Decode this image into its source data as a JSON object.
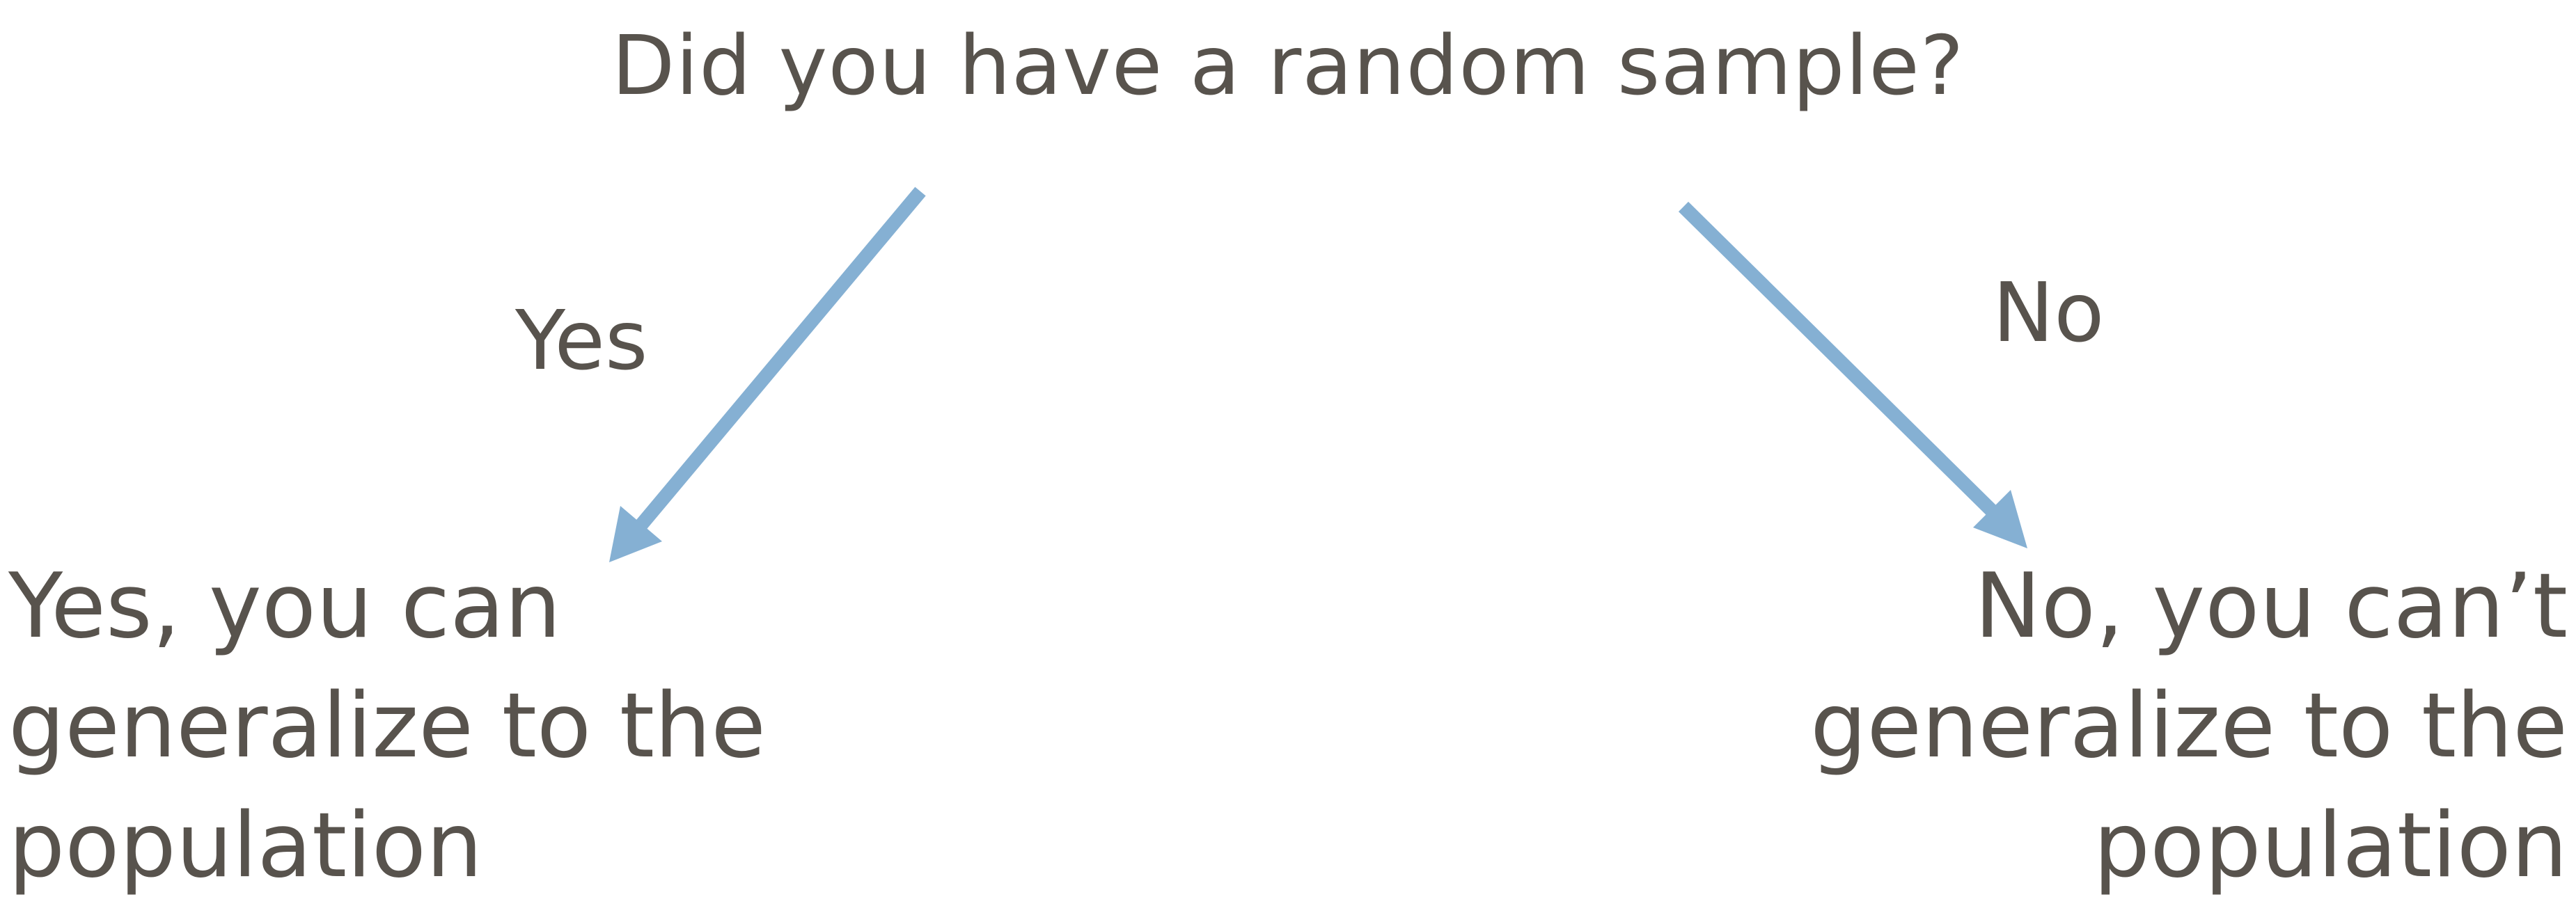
{
  "diagram": {
    "question": "Did you have a random sample?",
    "branches": [
      {
        "label": "Yes",
        "outcome_lines": [
          "Yes, you can",
          "generalize to the",
          "population"
        ]
      },
      {
        "label": "No",
        "outcome_lines": [
          "No, you can’t",
          "generalize to the",
          "population"
        ]
      }
    ]
  },
  "colors": {
    "text": "#58534d",
    "arrow": "#85b0d3",
    "background": "#ffffff"
  }
}
